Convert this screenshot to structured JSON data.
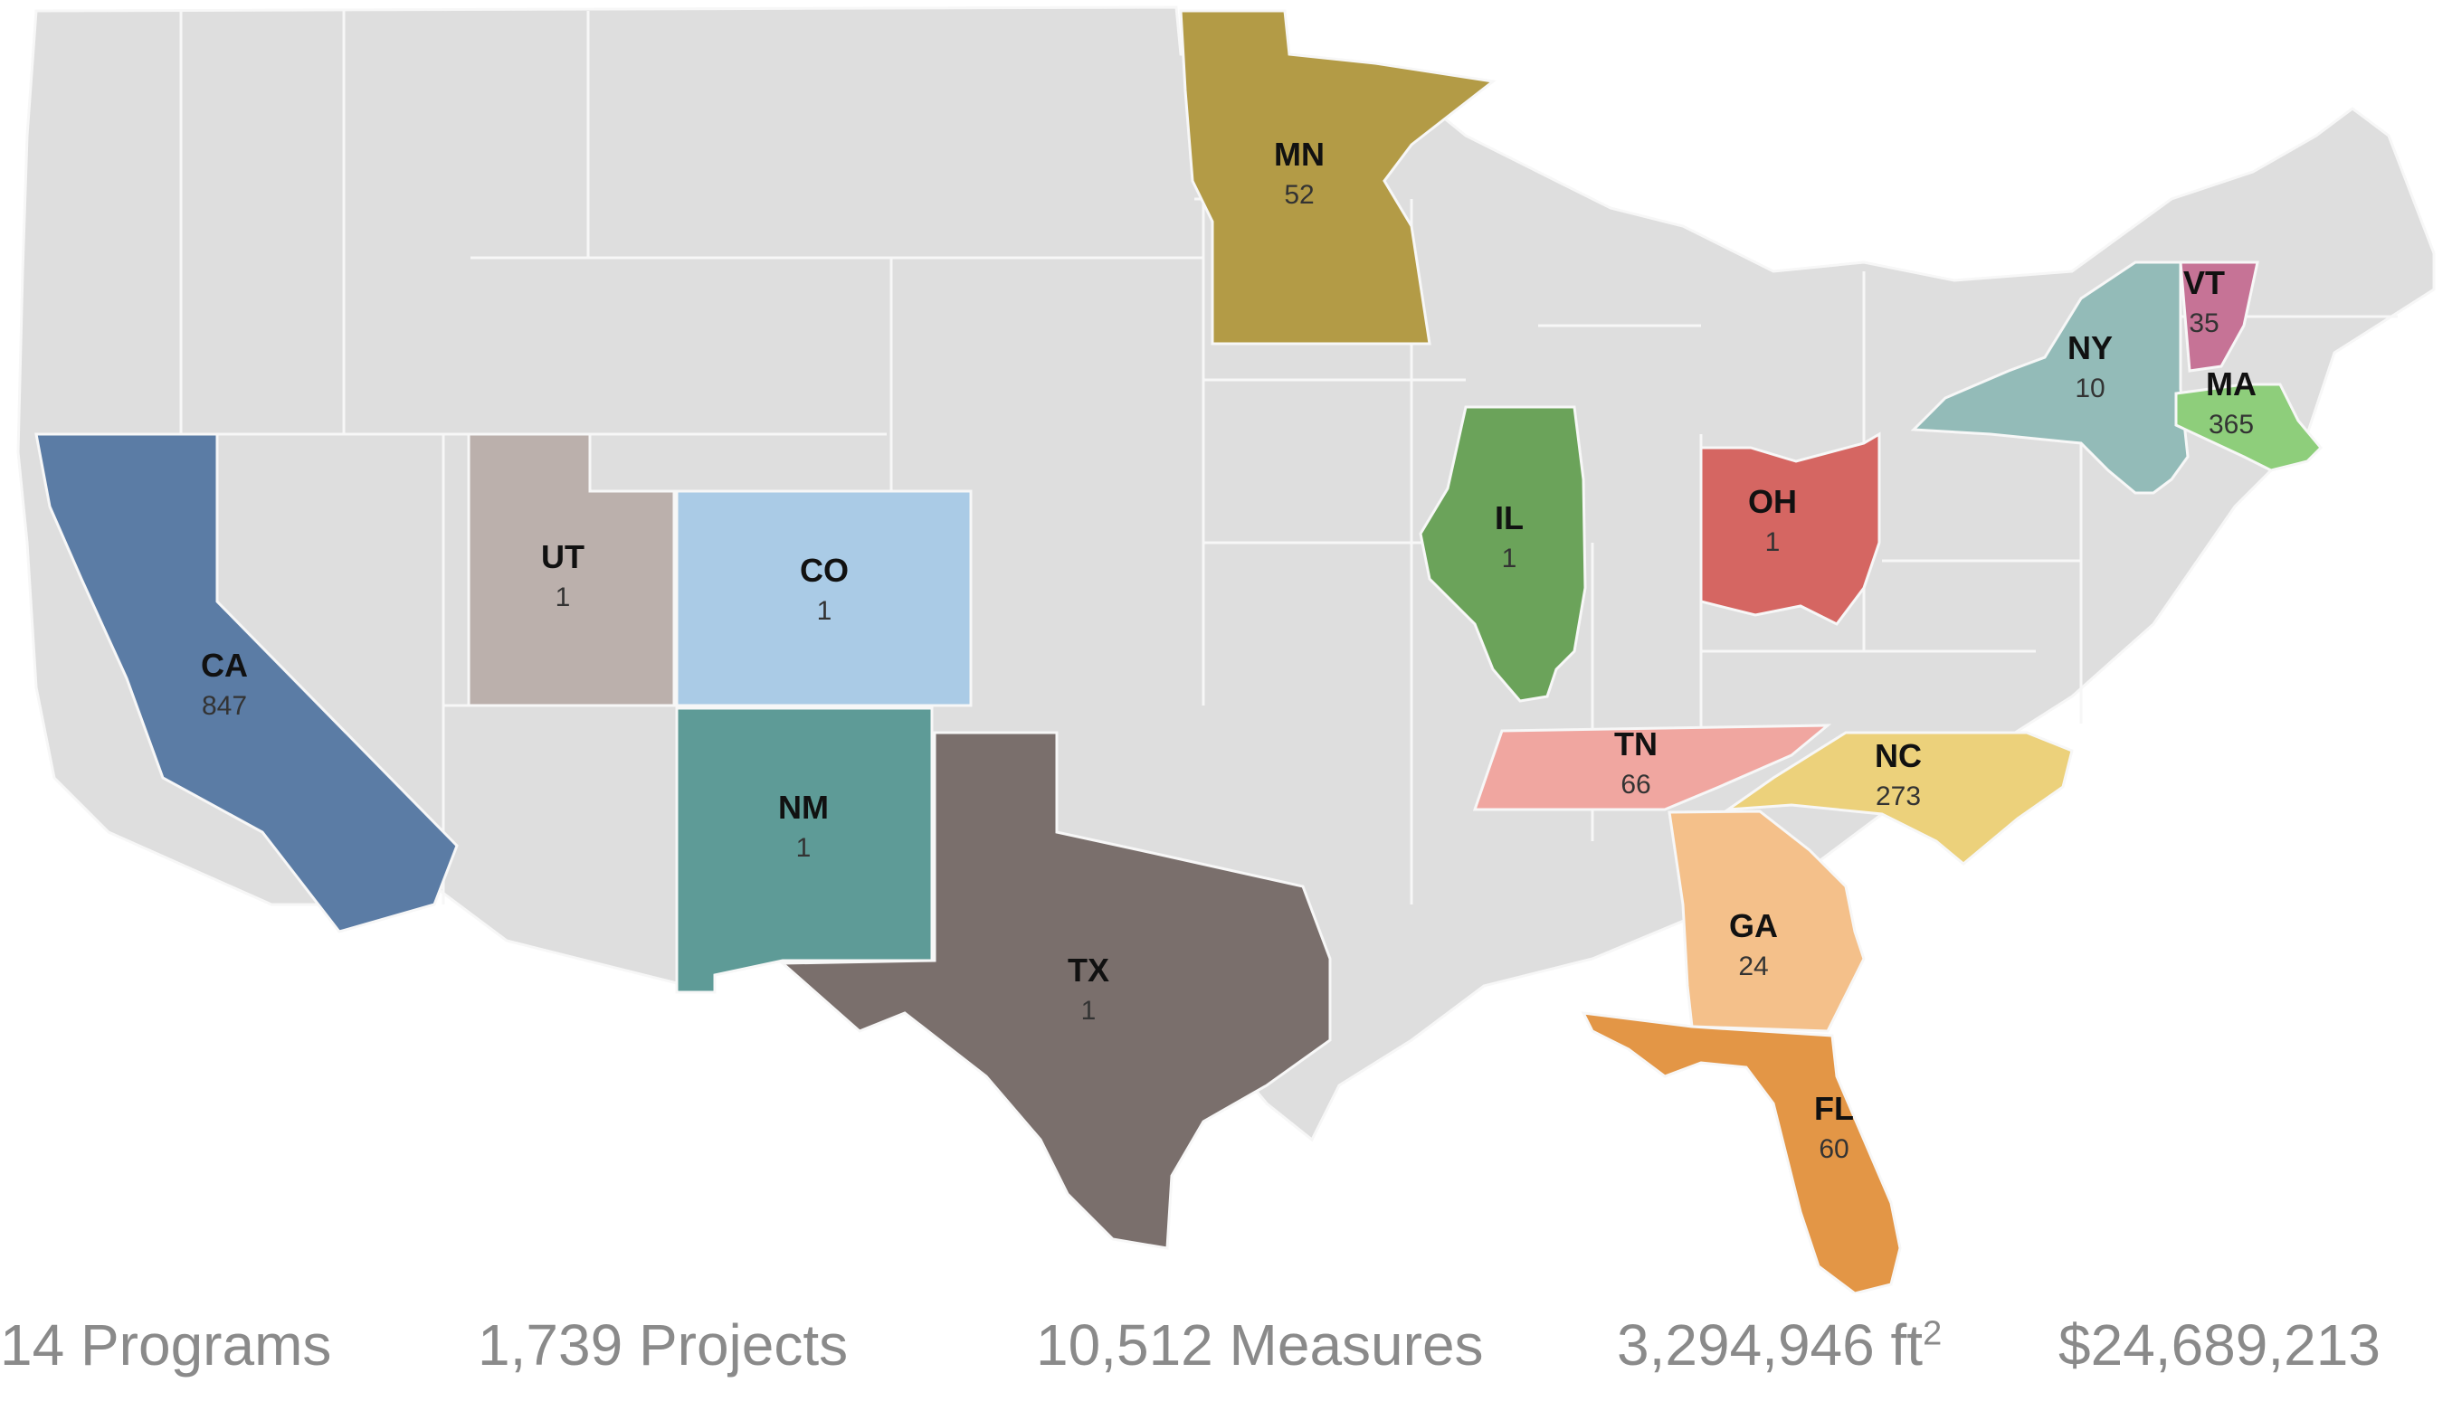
{
  "colors": {
    "base": "#dedede",
    "border": "#f7f7f7"
  },
  "states": [
    {
      "code": "CA",
      "count": "847",
      "color": "#5b7ca5"
    },
    {
      "code": "UT",
      "count": "1",
      "color": "#bbb0ac"
    },
    {
      "code": "CO",
      "count": "1",
      "color": "#aacbe6"
    },
    {
      "code": "NM",
      "count": "1",
      "color": "#5e9b97"
    },
    {
      "code": "TX",
      "count": "1",
      "color": "#7a6f6c"
    },
    {
      "code": "MN",
      "count": "52",
      "color": "#b39b46"
    },
    {
      "code": "IL",
      "count": "1",
      "color": "#6ba35a"
    },
    {
      "code": "OH",
      "count": "1",
      "color": "#d56662"
    },
    {
      "code": "TN",
      "count": "66",
      "color": "#f0a6a0"
    },
    {
      "code": "NC",
      "count": "273",
      "color": "#ecd17b"
    },
    {
      "code": "GA",
      "count": "24",
      "color": "#f4c08a"
    },
    {
      "code": "FL",
      "count": "60",
      "color": "#e39646"
    },
    {
      "code": "NY",
      "count": "10",
      "color": "#93bbb8"
    },
    {
      "code": "VT",
      "count": "35",
      "color": "#c67396"
    },
    {
      "code": "MA",
      "count": "365",
      "color": "#8ece7b"
    }
  ],
  "stats": {
    "programs": "14 Programs",
    "projects": "1,739 Projects",
    "measures": "10,512 Measures",
    "area": "3,294,946 ft",
    "area_sup": "2",
    "funding": "$24,689,213"
  }
}
